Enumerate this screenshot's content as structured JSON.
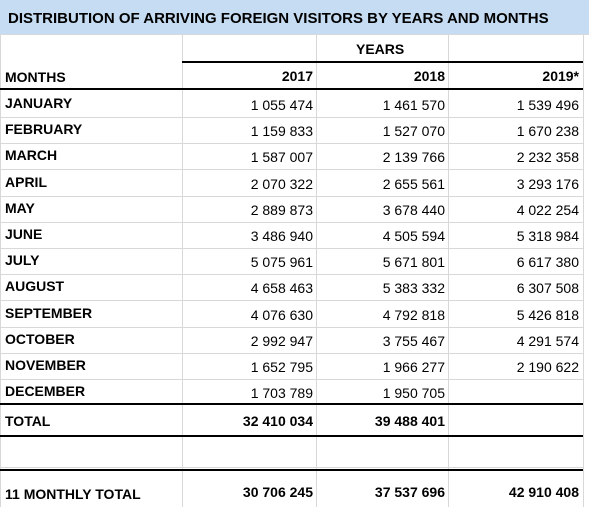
{
  "title": "DISTRIBUTION OF ARRIVING FOREIGN VISITORS BY YEARS AND MONTHS",
  "header": {
    "group": "YEARS",
    "row_label": "MONTHS",
    "columns": [
      "2017",
      "2018",
      "2019*"
    ]
  },
  "rows": [
    [
      "JANUARY",
      "1 055 474",
      "1 461 570",
      "1 539 496"
    ],
    [
      "FEBRUARY",
      "1 159 833",
      "1 527 070",
      "1 670 238"
    ],
    [
      "MARCH",
      "1 587 007",
      "2 139 766",
      "2 232 358"
    ],
    [
      "APRIL",
      "2 070 322",
      "2 655 561",
      "3 293 176"
    ],
    [
      "MAY",
      "2 889 873",
      "3 678 440",
      "4 022 254"
    ],
    [
      "JUNE",
      "3 486 940",
      "4 505 594",
      "5 318 984"
    ],
    [
      "JULY",
      "5 075 961",
      "5 671 801",
      "6 617 380"
    ],
    [
      "AUGUST",
      "4 658 463",
      "5 383 332",
      "6 307 508"
    ],
    [
      "SEPTEMBER",
      "4 076 630",
      "4 792 818",
      "5 426 818"
    ],
    [
      "OCTOBER",
      "2 992 947",
      "3 755 467",
      "4 291 574"
    ],
    [
      "NOVEMBER",
      "1 652 795",
      "1 966 277",
      "2 190 622"
    ],
    [
      "DECEMBER",
      "1 703 789",
      "1 950 705"
    ]
  ],
  "total": [
    "TOTAL",
    "32 410 034",
    "39 488 401"
  ],
  "monthly_total": [
    "11 MONTHLY TOTAL",
    "30 706 245",
    "37 537 696",
    "42 910 408"
  ]
}
